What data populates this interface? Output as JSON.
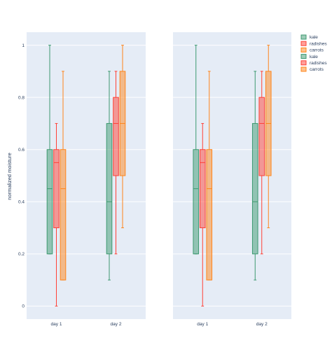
{
  "chart_data": {
    "type": "box",
    "ylabel": "normalized moisture",
    "ylim": [
      -0.05,
      1.05
    ],
    "yticks": [
      "0",
      "0.2",
      "0.4",
      "0.6",
      "0.8",
      "1"
    ],
    "grid": true,
    "legend_position": "top-right",
    "colors": {
      "kale": "#3d9970",
      "radishes": "#ff4136",
      "carrots": "#ff851b",
      "plot_bg": "#e5ecf6"
    },
    "panels": [
      {
        "categories": [
          "day 1",
          "day 2"
        ],
        "series": [
          {
            "name": "kale",
            "color": "#3d9970",
            "boxes": [
              {
                "category": "day 1",
                "min": 0.2,
                "q1": 0.2,
                "median": 0.45,
                "q3": 0.6,
                "max": 1.0
              },
              {
                "category": "day 2",
                "min": 0.1,
                "q1": 0.2,
                "median": 0.4,
                "q3": 0.7,
                "max": 0.9
              }
            ]
          },
          {
            "name": "radishes",
            "color": "#ff4136",
            "boxes": [
              {
                "category": "day 1",
                "min": 0.0,
                "q1": 0.3,
                "median": 0.55,
                "q3": 0.6,
                "max": 0.7
              },
              {
                "category": "day 2",
                "min": 0.2,
                "q1": 0.5,
                "median": 0.7,
                "q3": 0.8,
                "max": 0.9
              }
            ]
          },
          {
            "name": "carrots",
            "color": "#ff851b",
            "boxes": [
              {
                "category": "day 1",
                "min": 0.1,
                "q1": 0.1,
                "median": 0.45,
                "q3": 0.6,
                "max": 0.9
              },
              {
                "category": "day 2",
                "min": 0.3,
                "q1": 0.5,
                "median": 0.7,
                "q3": 0.9,
                "max": 1.0
              }
            ]
          }
        ]
      },
      {
        "categories": [
          "day 1",
          "day 2"
        ],
        "series": [
          {
            "name": "kale",
            "color": "#3d9970",
            "boxes": [
              {
                "category": "day 1",
                "min": 0.2,
                "q1": 0.2,
                "median": 0.45,
                "q3": 0.6,
                "max": 1.0
              },
              {
                "category": "day 2",
                "min": 0.1,
                "q1": 0.2,
                "median": 0.4,
                "q3": 0.7,
                "max": 0.9
              }
            ]
          },
          {
            "name": "radishes",
            "color": "#ff4136",
            "boxes": [
              {
                "category": "day 1",
                "min": 0.0,
                "q1": 0.3,
                "median": 0.55,
                "q3": 0.6,
                "max": 0.7
              },
              {
                "category": "day 2",
                "min": 0.2,
                "q1": 0.5,
                "median": 0.7,
                "q3": 0.8,
                "max": 0.9
              }
            ]
          },
          {
            "name": "carrots",
            "color": "#ff851b",
            "boxes": [
              {
                "category": "day 1",
                "min": 0.1,
                "q1": 0.1,
                "median": 0.45,
                "q3": 0.6,
                "max": 0.9
              },
              {
                "category": "day 2",
                "min": 0.3,
                "q1": 0.5,
                "median": 0.7,
                "q3": 0.9,
                "max": 1.0
              }
            ]
          }
        ]
      }
    ],
    "legend": [
      "kale",
      "radishes",
      "carrots",
      "kale",
      "radishes",
      "carrots"
    ]
  }
}
